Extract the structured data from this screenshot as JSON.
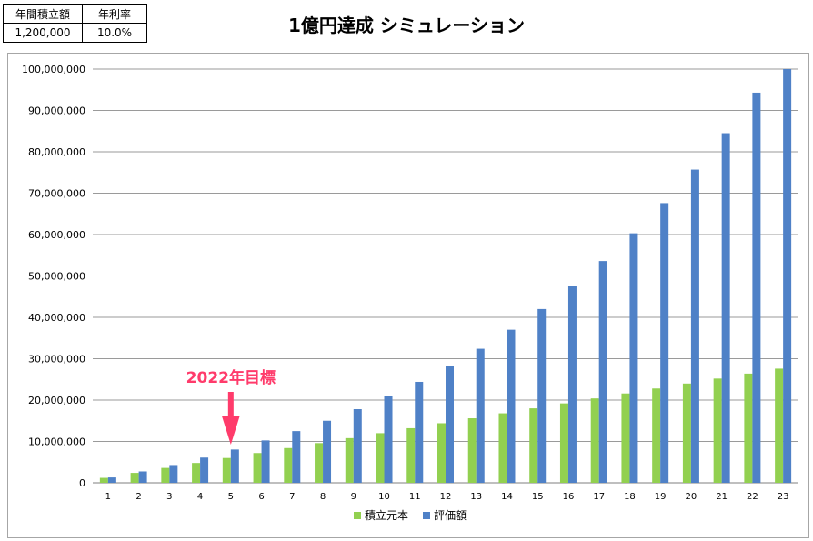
{
  "params": {
    "headers": [
      "年間積立額",
      "年利率"
    ],
    "values": [
      "1,200,000",
      "10.0%"
    ]
  },
  "title": "1億円達成 シミュレーション",
  "annotation": {
    "text": "2022年目標",
    "year": 5,
    "color": "#ff3b6b"
  },
  "colors": {
    "principal": "#92d050",
    "valuation": "#4f81c7"
  },
  "chart_data": {
    "type": "bar",
    "title": "1億円達成 シミュレーション",
    "categories": [
      "1",
      "2",
      "3",
      "4",
      "5",
      "6",
      "7",
      "8",
      "9",
      "10",
      "11",
      "12",
      "13",
      "14",
      "15",
      "16",
      "17",
      "18",
      "19",
      "20",
      "21",
      "22",
      "23"
    ],
    "series": [
      {
        "name": "積立元本",
        "values": [
          1200000,
          2400000,
          3600000,
          4800000,
          6000000,
          7200000,
          8400000,
          9600000,
          10800000,
          12000000,
          13200000,
          14400000,
          15600000,
          16800000,
          18000000,
          19200000,
          20400000,
          21600000,
          22800000,
          24000000,
          25200000,
          26400000,
          27600000
        ]
      },
      {
        "name": "評価額",
        "values": [
          1300000,
          2750000,
          4300000,
          6100000,
          8050000,
          10250000,
          12500000,
          15000000,
          17800000,
          21000000,
          24400000,
          28200000,
          32400000,
          37000000,
          42000000,
          47500000,
          53600000,
          60300000,
          67600000,
          75700000,
          84500000,
          94300000,
          100000000
        ]
      }
    ],
    "ylim": [
      0,
      100000000
    ],
    "ytick_step": 10000000,
    "ytick_labels": [
      "0",
      "10,000,000",
      "20,000,000",
      "30,000,000",
      "40,000,000",
      "50,000,000",
      "60,000,000",
      "70,000,000",
      "80,000,000",
      "90,000,000",
      "100,000,000"
    ],
    "grid": true,
    "legend_position": "bottom"
  }
}
